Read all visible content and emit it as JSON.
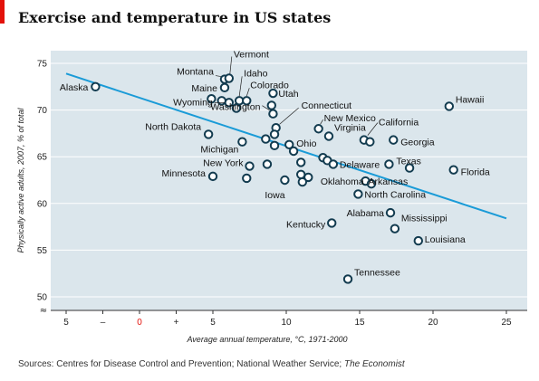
{
  "title": "Exercise and temperature in US states",
  "source": {
    "text": "Sources: Centres for Disease Control and Prevention; National Weather Service; ",
    "emphasis": "The Economist"
  },
  "colors": {
    "plot_background": "#dbe6ec",
    "trend_line": "#1a9bd7",
    "marker_edge": "#123b4f",
    "marker_fill": "#ffffff",
    "zero_label": "#e3120b",
    "title_accent": "#e3120b"
  },
  "chart_data": {
    "type": "scatter",
    "title": "Exercise and temperature in US states",
    "xlabel": "Average annual temperature, °C, 1971-2000",
    "ylabel": "Physically active adults, 2007, % of total",
    "xlim": [
      -5,
      25
    ],
    "ylim": [
      50,
      75
    ],
    "x_ticks": [
      {
        "value": -5,
        "label": "5"
      },
      {
        "value": -2.5,
        "label": "–"
      },
      {
        "value": 0,
        "label": "0"
      },
      {
        "value": 2.5,
        "label": "+"
      },
      {
        "value": 5,
        "label": "5"
      },
      {
        "value": 10,
        "label": "10"
      },
      {
        "value": 15,
        "label": "15"
      },
      {
        "value": 20,
        "label": "20"
      },
      {
        "value": 25,
        "label": "25"
      }
    ],
    "y_ticks": [
      {
        "value": 50,
        "label": "50"
      },
      {
        "value": 55,
        "label": "55"
      },
      {
        "value": 60,
        "label": "60"
      },
      {
        "value": 65,
        "label": "65"
      },
      {
        "value": 70,
        "label": "70"
      },
      {
        "value": 75,
        "label": "75"
      }
    ],
    "grid": "horizontal",
    "axis_break_symbol": "≈",
    "trend_line": {
      "x": [
        -5,
        25
      ],
      "y": [
        73.9,
        58.4
      ]
    },
    "points": [
      {
        "label": "Alaska",
        "x": -3.0,
        "y": 72.5
      },
      {
        "label": "Montana",
        "x": 5.8,
        "y": 73.3
      },
      {
        "label": "Vermont",
        "x": 6.1,
        "y": 73.4
      },
      {
        "label": "Maine",
        "x": 5.8,
        "y": 72.4
      },
      {
        "label": "Idaho",
        "x": 6.8,
        "y": 71.0
      },
      {
        "label": "Colorado",
        "x": 7.3,
        "y": 71.0
      },
      {
        "label": "Wyoming",
        "x": 6.1,
        "y": 70.8
      },
      {
        "label": "Utah",
        "x": 9.1,
        "y": 71.8
      },
      {
        "label": "",
        "x": 4.9,
        "y": 71.2
      },
      {
        "label": "",
        "x": 5.6,
        "y": 71.0
      },
      {
        "label": "",
        "x": 6.6,
        "y": 70.2
      },
      {
        "label": "",
        "x": 9.0,
        "y": 70.5
      },
      {
        "label": "Washington",
        "x": 9.1,
        "y": 69.6
      },
      {
        "label": "Connecticut",
        "x": 9.3,
        "y": 68.1
      },
      {
        "label": "North Dakota",
        "x": 4.7,
        "y": 67.4
      },
      {
        "label": "",
        "x": 9.2,
        "y": 67.4
      },
      {
        "label": "",
        "x": 8.6,
        "y": 66.9
      },
      {
        "label": "Michigan",
        "x": 7.0,
        "y": 66.6
      },
      {
        "label": "New Mexico",
        "x": 12.2,
        "y": 68.0
      },
      {
        "label": "Virginia",
        "x": 12.9,
        "y": 67.2
      },
      {
        "label": "California",
        "x": 15.3,
        "y": 66.8
      },
      {
        "label": "",
        "x": 15.7,
        "y": 66.6
      },
      {
        "label": "Georgia",
        "x": 17.3,
        "y": 66.8
      },
      {
        "label": "Hawaii",
        "x": 21.1,
        "y": 70.4
      },
      {
        "label": "",
        "x": 9.2,
        "y": 66.2
      },
      {
        "label": "Ohio",
        "x": 10.2,
        "y": 66.3
      },
      {
        "label": "",
        "x": 10.5,
        "y": 65.6
      },
      {
        "label": "",
        "x": 12.5,
        "y": 64.9
      },
      {
        "label": "",
        "x": 12.8,
        "y": 64.6
      },
      {
        "label": "Delaware",
        "x": 13.2,
        "y": 64.2
      },
      {
        "label": "New York",
        "x": 7.5,
        "y": 64.0
      },
      {
        "label": "",
        "x": 8.7,
        "y": 64.2
      },
      {
        "label": "",
        "x": 11.0,
        "y": 64.4
      },
      {
        "label": "Minnesota",
        "x": 5.0,
        "y": 62.9
      },
      {
        "label": "",
        "x": 7.3,
        "y": 62.7
      },
      {
        "label": "Iowa",
        "x": 9.9,
        "y": 62.5
      },
      {
        "label": "",
        "x": 11.0,
        "y": 63.1
      },
      {
        "label": "",
        "x": 11.5,
        "y": 62.8
      },
      {
        "label": "Oklahoma",
        "x": 11.1,
        "y": 62.3
      },
      {
        "label": "Arkansas",
        "x": 15.4,
        "y": 62.4
      },
      {
        "label": "",
        "x": 15.8,
        "y": 62.1
      },
      {
        "label": "Texas",
        "x": 17.0,
        "y": 64.2
      },
      {
        "label": "",
        "x": 18.4,
        "y": 63.8
      },
      {
        "label": "Florida",
        "x": 21.4,
        "y": 63.6
      },
      {
        "label": "North Carolina",
        "x": 14.9,
        "y": 61.0
      },
      {
        "label": "Alabama",
        "x": 17.1,
        "y": 59.0
      },
      {
        "label": "Kentucky",
        "x": 13.1,
        "y": 57.9
      },
      {
        "label": "Mississippi",
        "x": 17.4,
        "y": 57.3
      },
      {
        "label": "Louisiana",
        "x": 19.0,
        "y": 56.0
      },
      {
        "label": "Tennessee",
        "x": 14.2,
        "y": 51.9
      }
    ]
  }
}
